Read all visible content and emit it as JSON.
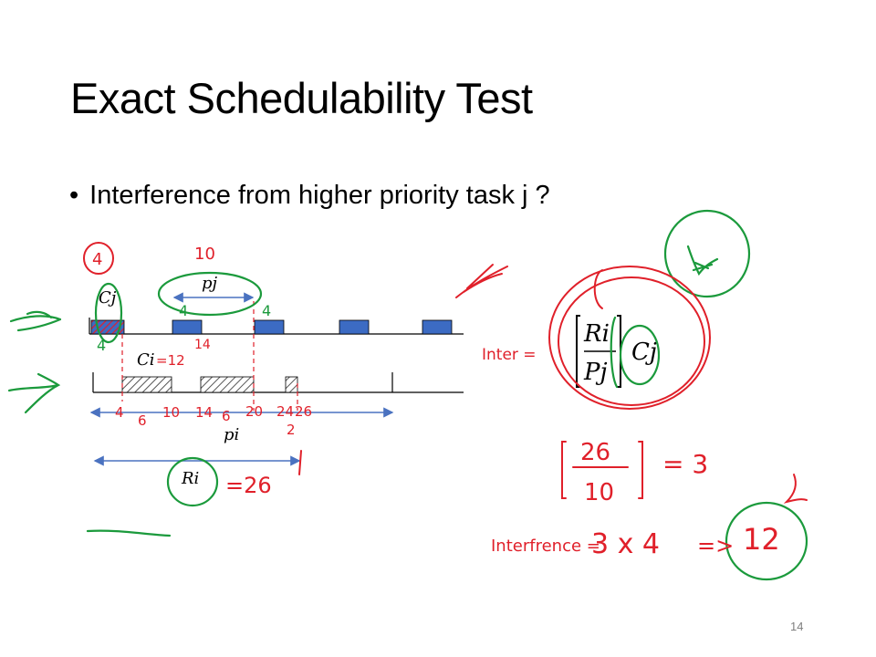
{
  "slide": {
    "title": "Exact Schedulability Test",
    "bullet": "Interference from higher priority task j ?",
    "page_number": "14"
  },
  "diagram": {
    "labels": {
      "cj": "Cj",
      "pj": "pj",
      "ci": "Ci",
      "pi": "pi",
      "ri": "Ri"
    },
    "formula": {
      "numerator": "Ri",
      "denominator": "Pj",
      "multiplier": "Cj"
    },
    "annotations": {
      "cj_value": "4",
      "pj_value": "10",
      "job_value_1": "4",
      "job_value_2": "4",
      "job_value_3": "4",
      "ci_value": "=12",
      "ci_mark": "14",
      "ticks": [
        "4",
        "6",
        "10",
        "14",
        "6",
        "20",
        "24",
        "26"
      ],
      "pi_mark": "2",
      "ri_value": "=26",
      "inter_label": "Inter =",
      "frac_num": "26",
      "frac_den": "10",
      "frac_result": "= 3",
      "interference_label": "Interfrence =",
      "interference_expr": "3 x 4",
      "arrow_result": "=>",
      "result": "12"
    },
    "colors": {
      "job_fill": "#3c6bc3",
      "axis": "#000000",
      "arrow": "#4a72c0",
      "red_ink": "#e0202a",
      "green_ink": "#1b9a3c",
      "hatch": "#555555"
    }
  }
}
